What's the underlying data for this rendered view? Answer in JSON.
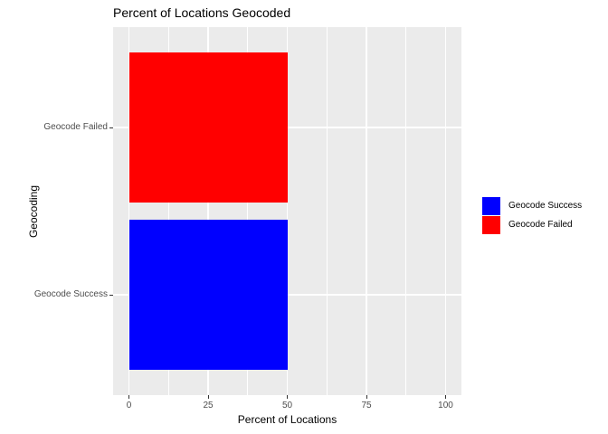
{
  "chart_data": {
    "type": "bar",
    "orientation": "horizontal",
    "title": "Percent of Locations Geocoded",
    "xlabel": "Percent of Locations",
    "ylabel": "Geocoding",
    "categories": [
      "Geocode Failed",
      "Geocode Success"
    ],
    "series": [
      {
        "name": "Percent of Locations",
        "values": [
          50,
          50
        ]
      }
    ],
    "bar_colors": [
      "#FF0000",
      "#0000FF"
    ],
    "xlim": [
      0,
      100
    ],
    "x_major_ticks": [
      0,
      25,
      50,
      75,
      100
    ],
    "x_minor_ticks": [
      12.5,
      37.5,
      62.5,
      87.5
    ],
    "grid": true,
    "legend": {
      "position": "right",
      "entries": [
        {
          "label": "Geocode Success",
          "color": "#0000FF"
        },
        {
          "label": "Geocode Failed",
          "color": "#FF0000"
        }
      ]
    },
    "colors": {
      "panel_background": "#EBEBEB",
      "gridline": "#FFFFFF",
      "axis_text": "#4D4D4D",
      "tick": "#333333",
      "title_text": "#000000"
    }
  }
}
